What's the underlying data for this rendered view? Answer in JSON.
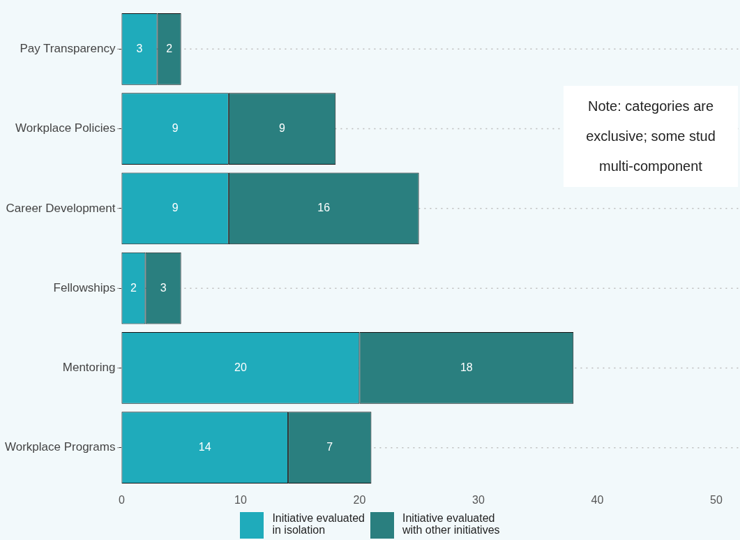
{
  "chart_data": {
    "type": "bar",
    "orientation": "horizontal",
    "stacked": true,
    "categories": [
      "Pay Transparency",
      "Workplace Policies",
      "Career Development",
      "Fellowships",
      "Mentoring",
      "Workplace Programs"
    ],
    "series": [
      {
        "name": "Initiative evaluated\nin isolation",
        "color": "#1fabbb",
        "values": [
          3,
          9,
          9,
          2,
          20,
          14
        ]
      },
      {
        "name": "Initiative evaluated\nwith other initiatives",
        "color": "#2a7f7f",
        "values": [
          2,
          9,
          16,
          3,
          18,
          7
        ]
      }
    ],
    "xlim": [
      0,
      52
    ],
    "xticks": [
      0,
      10,
      20,
      30,
      40,
      50
    ],
    "data_labels": true,
    "grid": "y",
    "legend": "bottom",
    "annotations": [
      "Note: categories are\nexclusive; some stud\nmulti-component"
    ]
  }
}
